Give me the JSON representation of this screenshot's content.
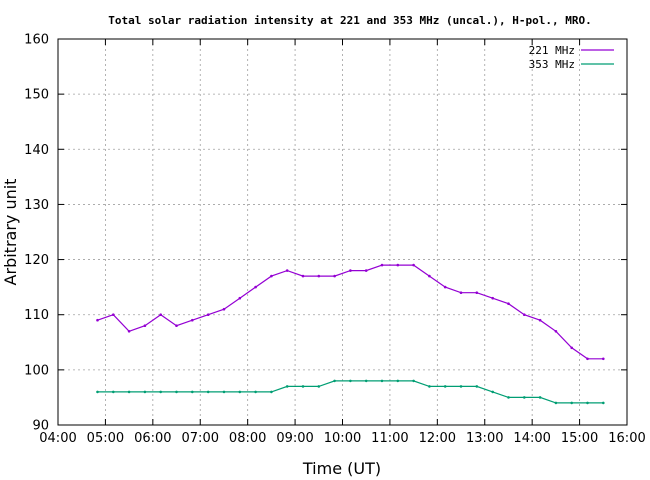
{
  "chart_data": {
    "type": "line",
    "title": "Total solar radiation intensity at 221 and 353 MHz (uncal.), H-pol., MRO.",
    "xlabel": "Time (UT)",
    "ylabel": "Arbitrary unit",
    "xlim": [
      "04:00",
      "16:00"
    ],
    "ylim": [
      90,
      160
    ],
    "xticks": [
      "04:00",
      "05:00",
      "06:00",
      "07:00",
      "08:00",
      "09:00",
      "10:00",
      "11:00",
      "12:00",
      "13:00",
      "14:00",
      "15:00",
      "16:00"
    ],
    "yticks": [
      90,
      100,
      110,
      120,
      130,
      140,
      150,
      160
    ],
    "grid": true,
    "legend_position": "top-right",
    "series": [
      {
        "name": "221 MHz",
        "color": "#9400d3",
        "x": [
          "04:50",
          "05:10",
          "05:30",
          "05:50",
          "06:10",
          "06:30",
          "06:50",
          "07:10",
          "07:30",
          "07:50",
          "08:10",
          "08:30",
          "08:50",
          "09:10",
          "09:30",
          "09:50",
          "10:10",
          "10:30",
          "10:50",
          "11:10",
          "11:30",
          "11:50",
          "12:10",
          "12:30",
          "12:50",
          "13:10",
          "13:30",
          "13:50",
          "14:10",
          "14:30",
          "14:50",
          "15:10",
          "15:30"
        ],
        "values": [
          109,
          110,
          107,
          108,
          110,
          108,
          109,
          110,
          111,
          113,
          115,
          117,
          118,
          117,
          117,
          117,
          118,
          118,
          119,
          119,
          119,
          117,
          115,
          114,
          114,
          113,
          112,
          110,
          109,
          107,
          104,
          102,
          102
        ]
      },
      {
        "name": "353 MHz",
        "color": "#009e73",
        "x": [
          "04:50",
          "05:10",
          "05:30",
          "05:50",
          "06:10",
          "06:30",
          "06:50",
          "07:10",
          "07:30",
          "07:50",
          "08:10",
          "08:30",
          "08:50",
          "09:10",
          "09:30",
          "09:50",
          "10:10",
          "10:30",
          "10:50",
          "11:10",
          "11:30",
          "11:50",
          "12:10",
          "12:30",
          "12:50",
          "13:10",
          "13:30",
          "13:50",
          "14:10",
          "14:30",
          "14:50",
          "15:10",
          "15:30"
        ],
        "values": [
          96,
          96,
          96,
          96,
          96,
          96,
          96,
          96,
          96,
          96,
          96,
          96,
          97,
          97,
          97,
          98,
          98,
          98,
          98,
          98,
          98,
          97,
          97,
          97,
          97,
          96,
          95,
          95,
          95,
          94,
          94,
          94,
          94
        ]
      }
    ]
  }
}
